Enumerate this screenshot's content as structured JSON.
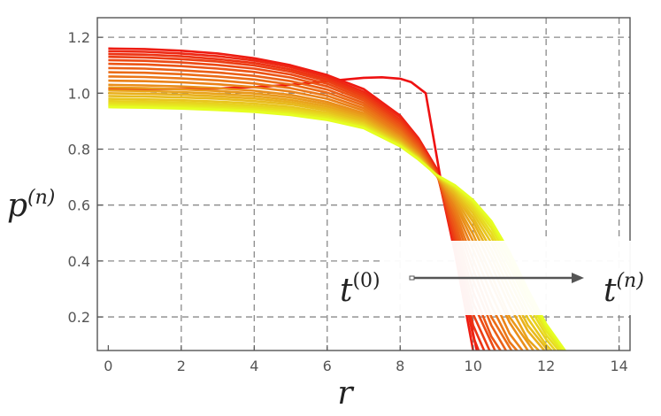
{
  "chart_data": {
    "type": "line",
    "xlabel": "r",
    "ylabel": {
      "base": "p",
      "sup": "(n)"
    },
    "xlim": [
      -0.3,
      14.3
    ],
    "ylim": [
      0.08,
      1.27
    ],
    "xticks": [
      0,
      2,
      4,
      6,
      8,
      10,
      12,
      14
    ],
    "yticks": [
      0.2,
      0.4,
      0.6,
      0.8,
      1.0,
      1.2
    ],
    "xtick_labels": [
      "0",
      "2",
      "4",
      "6",
      "8",
      "10",
      "12",
      "14"
    ],
    "ytick_labels": [
      "0.2",
      "0.4",
      "0.6",
      "0.8",
      "1.0",
      "1.2"
    ],
    "grid": true,
    "color_gradient": [
      "#ee1111",
      "#e6ff22"
    ],
    "series_count": 22,
    "intersection_point": [
      9.1,
      0.71
    ],
    "series": [
      {
        "x": [
          0,
          1,
          2,
          3,
          4,
          5,
          6,
          7,
          7.5,
          8,
          8.3,
          8.7,
          9.1,
          9.5,
          9.9,
          10.1
        ],
        "y": [
          1.015,
          1.015,
          1.015,
          1.017,
          1.022,
          1.03,
          1.043,
          1.055,
          1.057,
          1.052,
          1.04,
          1.0,
          0.7,
          0.45,
          0.2,
          0.08
        ]
      },
      {
        "x": [
          0,
          1,
          2,
          3,
          4,
          5,
          6,
          7,
          8,
          8.5,
          9,
          9.5,
          10
        ],
        "y": [
          1.16,
          1.158,
          1.152,
          1.142,
          1.125,
          1.1,
          1.065,
          1.015,
          0.92,
          0.84,
          0.73,
          0.43,
          0.08
        ]
      },
      {
        "x": [
          0,
          1,
          2,
          3,
          4,
          5,
          6,
          7,
          8,
          8.5,
          9,
          9.5,
          10,
          10.15
        ],
        "y": [
          1.15,
          1.148,
          1.142,
          1.132,
          1.117,
          1.093,
          1.058,
          1.005,
          0.915,
          0.835,
          0.725,
          0.45,
          0.13,
          0.08
        ]
      },
      {
        "x": [
          0,
          1,
          2,
          3,
          4,
          5,
          6,
          7,
          8,
          8.5,
          9,
          9.5,
          10,
          10.3
        ],
        "y": [
          1.14,
          1.138,
          1.132,
          1.122,
          1.108,
          1.085,
          1.05,
          0.997,
          0.905,
          0.83,
          0.72,
          0.46,
          0.17,
          0.08
        ]
      },
      {
        "x": [
          0,
          1,
          2,
          3,
          4,
          5,
          6,
          7,
          8,
          8.5,
          9,
          9.5,
          10,
          10.45
        ],
        "y": [
          1.13,
          1.128,
          1.122,
          1.113,
          1.099,
          1.077,
          1.043,
          0.99,
          0.898,
          0.825,
          0.718,
          0.48,
          0.21,
          0.08
        ]
      },
      {
        "x": [
          0,
          1,
          2,
          3,
          4,
          5,
          6,
          7,
          8,
          8.5,
          9,
          9.5,
          10,
          10.6
        ],
        "y": [
          1.118,
          1.116,
          1.11,
          1.101,
          1.088,
          1.067,
          1.034,
          0.982,
          0.89,
          0.818,
          0.715,
          0.5,
          0.25,
          0.08
        ]
      },
      {
        "x": [
          0,
          1,
          2,
          3,
          4,
          5,
          6,
          7,
          8,
          8.5,
          9,
          9.5,
          10,
          10.5,
          10.75
        ],
        "y": [
          1.105,
          1.103,
          1.097,
          1.088,
          1.076,
          1.056,
          1.024,
          0.974,
          0.882,
          0.812,
          0.712,
          0.52,
          0.29,
          0.13,
          0.08
        ]
      },
      {
        "x": [
          0,
          1,
          2,
          3,
          4,
          5,
          6,
          7,
          8,
          8.5,
          9,
          9.5,
          10,
          10.5,
          10.9
        ],
        "y": [
          1.09,
          1.088,
          1.082,
          1.074,
          1.062,
          1.043,
          1.013,
          0.965,
          0.874,
          0.806,
          0.71,
          0.54,
          0.33,
          0.17,
          0.08
        ]
      },
      {
        "x": [
          0,
          1,
          2,
          3,
          4,
          5,
          6,
          7,
          8,
          8.5,
          9,
          9.5,
          10,
          10.5,
          11.05
        ],
        "y": [
          1.075,
          1.073,
          1.068,
          1.06,
          1.049,
          1.031,
          1.002,
          0.956,
          0.867,
          0.8,
          0.708,
          0.56,
          0.37,
          0.2,
          0.08
        ]
      },
      {
        "x": [
          0,
          1,
          2,
          3,
          4,
          5,
          6,
          7,
          8,
          8.5,
          9,
          9.5,
          10,
          10.5,
          11,
          11.2
        ],
        "y": [
          1.06,
          1.058,
          1.053,
          1.046,
          1.035,
          1.018,
          0.991,
          0.947,
          0.86,
          0.795,
          0.706,
          0.575,
          0.405,
          0.24,
          0.11,
          0.08
        ]
      },
      {
        "x": [
          0,
          1,
          2,
          3,
          4,
          5,
          6,
          7,
          8,
          8.5,
          9,
          9.5,
          10,
          10.5,
          11,
          11.35
        ],
        "y": [
          1.045,
          1.043,
          1.039,
          1.032,
          1.022,
          1.006,
          0.98,
          0.938,
          0.853,
          0.79,
          0.705,
          0.59,
          0.44,
          0.28,
          0.14,
          0.08
        ]
      },
      {
        "x": [
          0,
          1,
          2,
          3,
          4,
          5,
          6,
          7,
          8,
          8.5,
          9,
          9.5,
          10,
          10.5,
          11,
          11.5
        ],
        "y": [
          1.03,
          1.028,
          1.024,
          1.018,
          1.009,
          0.994,
          0.969,
          0.929,
          0.846,
          0.786,
          0.705,
          0.605,
          0.47,
          0.32,
          0.18,
          0.08
        ]
      },
      {
        "x": [
          0,
          1,
          2,
          3,
          4,
          5,
          6,
          7,
          8,
          8.5,
          9,
          9.5,
          10,
          10.5,
          11,
          11.65
        ],
        "y": [
          1.02,
          1.018,
          1.014,
          1.008,
          0.999,
          0.985,
          0.961,
          0.922,
          0.841,
          0.782,
          0.704,
          0.615,
          0.495,
          0.35,
          0.2,
          0.08
        ]
      },
      {
        "x": [
          0,
          1,
          2,
          3,
          4,
          5,
          6,
          7,
          8,
          8.5,
          9,
          9.5,
          10,
          10.5,
          11,
          11.5,
          11.8
        ],
        "y": [
          1.01,
          1.008,
          1.004,
          0.998,
          0.99,
          0.976,
          0.953,
          0.915,
          0.836,
          0.779,
          0.704,
          0.625,
          0.52,
          0.385,
          0.24,
          0.12,
          0.08
        ]
      },
      {
        "x": [
          0,
          1,
          2,
          3,
          4,
          5,
          6,
          7,
          8,
          8.5,
          9,
          9.5,
          10,
          10.5,
          11,
          11.5,
          11.95
        ],
        "y": [
          1.0,
          0.998,
          0.995,
          0.989,
          0.981,
          0.968,
          0.945,
          0.908,
          0.831,
          0.776,
          0.704,
          0.635,
          0.54,
          0.415,
          0.27,
          0.15,
          0.08
        ]
      },
      {
        "x": [
          0,
          1,
          2,
          3,
          4,
          5,
          6,
          7,
          8,
          8.5,
          9,
          9.5,
          10,
          10.5,
          11,
          11.5,
          12.05
        ],
        "y": [
          0.99,
          0.988,
          0.985,
          0.98,
          0.972,
          0.96,
          0.938,
          0.902,
          0.827,
          0.773,
          0.704,
          0.642,
          0.555,
          0.44,
          0.3,
          0.17,
          0.08
        ]
      },
      {
        "x": [
          0,
          1,
          2,
          3,
          4,
          5,
          6,
          7,
          8,
          8.5,
          9,
          9.5,
          10,
          10.5,
          11,
          11.5,
          12,
          12.15
        ],
        "y": [
          0.98,
          0.978,
          0.975,
          0.97,
          0.963,
          0.951,
          0.93,
          0.896,
          0.823,
          0.771,
          0.705,
          0.65,
          0.57,
          0.465,
          0.33,
          0.195,
          0.1,
          0.08
        ]
      },
      {
        "x": [
          0,
          1,
          2,
          3,
          4,
          5,
          6,
          7,
          8,
          8.5,
          9,
          9.5,
          10,
          10.5,
          11,
          11.5,
          12,
          12.25
        ],
        "y": [
          0.972,
          0.97,
          0.967,
          0.962,
          0.955,
          0.944,
          0.924,
          0.891,
          0.82,
          0.769,
          0.705,
          0.656,
          0.583,
          0.485,
          0.355,
          0.22,
          0.12,
          0.08
        ]
      },
      {
        "x": [
          0,
          1,
          2,
          3,
          4,
          5,
          6,
          7,
          8,
          8.5,
          9,
          9.5,
          10,
          10.5,
          11,
          11.5,
          12,
          12.35
        ],
        "y": [
          0.965,
          0.963,
          0.96,
          0.955,
          0.948,
          0.937,
          0.918,
          0.886,
          0.817,
          0.767,
          0.706,
          0.661,
          0.594,
          0.502,
          0.38,
          0.245,
          0.135,
          0.08
        ]
      },
      {
        "x": [
          0,
          1,
          2,
          3,
          4,
          5,
          6,
          7,
          8,
          8.5,
          9,
          9.5,
          10,
          10.5,
          11,
          11.5,
          12,
          12.42
        ],
        "y": [
          0.959,
          0.957,
          0.954,
          0.949,
          0.942,
          0.931,
          0.913,
          0.882,
          0.814,
          0.765,
          0.707,
          0.665,
          0.604,
          0.518,
          0.4,
          0.265,
          0.15,
          0.08
        ]
      },
      {
        "x": [
          0,
          1,
          2,
          3,
          4,
          5,
          6,
          7,
          8,
          8.5,
          9,
          9.5,
          10,
          10.5,
          11,
          11.5,
          12,
          12.48
        ],
        "y": [
          0.954,
          0.952,
          0.949,
          0.944,
          0.937,
          0.926,
          0.908,
          0.878,
          0.812,
          0.764,
          0.707,
          0.668,
          0.612,
          0.532,
          0.418,
          0.283,
          0.163,
          0.08
        ]
      },
      {
        "x": [
          0,
          1,
          2,
          3,
          4,
          5,
          6,
          7,
          8,
          8.5,
          9,
          9.5,
          10,
          10.5,
          11,
          11.5,
          12,
          12.52
        ],
        "y": [
          0.95,
          0.948,
          0.945,
          0.94,
          0.933,
          0.922,
          0.904,
          0.875,
          0.81,
          0.763,
          0.708,
          0.671,
          0.618,
          0.543,
          0.432,
          0.298,
          0.175,
          0.08
        ]
      }
    ],
    "annotations": [
      {
        "base": "t",
        "sup": "(0)"
      },
      {
        "base": "t",
        "sup": "(n)"
      }
    ]
  }
}
